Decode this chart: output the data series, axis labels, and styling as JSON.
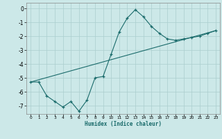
{
  "xlabel": "Humidex (Indice chaleur)",
  "background_color": "#cce8e8",
  "line_color": "#1a6b6b",
  "grid_color": "#aacece",
  "xlim": [
    -0.5,
    23.5
  ],
  "ylim": [
    -7.6,
    0.4
  ],
  "yticks": [
    0,
    -1,
    -2,
    -3,
    -4,
    -5,
    -6,
    -7
  ],
  "xticks": [
    0,
    1,
    2,
    3,
    4,
    5,
    6,
    7,
    8,
    9,
    10,
    11,
    12,
    13,
    14,
    15,
    16,
    17,
    18,
    19,
    20,
    21,
    22,
    23
  ],
  "curve_x": [
    0,
    1,
    2,
    3,
    4,
    5,
    6,
    7,
    8,
    9,
    10,
    11,
    12,
    13,
    14,
    15,
    16,
    17,
    18,
    19,
    20,
    21,
    22,
    23
  ],
  "curve_y": [
    -5.3,
    -5.3,
    -6.3,
    -6.7,
    -7.1,
    -6.7,
    -7.4,
    -6.6,
    -5.0,
    -4.9,
    -3.3,
    -1.7,
    -0.7,
    -0.1,
    -0.6,
    -1.3,
    -1.8,
    -2.2,
    -2.3,
    -2.2,
    -2.1,
    -2.0,
    -1.8,
    -1.6
  ],
  "trend_x": [
    0,
    23
  ],
  "trend_y": [
    -5.3,
    -1.6
  ]
}
